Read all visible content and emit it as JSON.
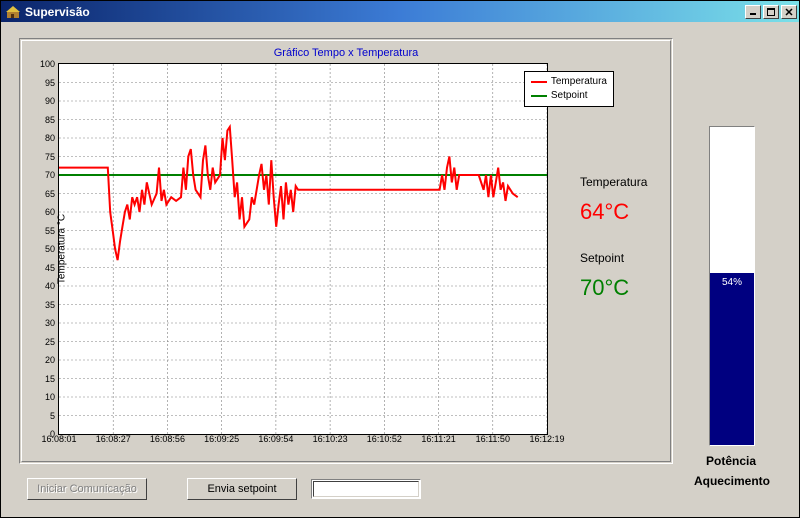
{
  "window": {
    "title": "Supervisão"
  },
  "panel": {
    "chart": {
      "title": "Gráfico Tempo x Temperatura",
      "type": "line",
      "title_color": "#0000cd",
      "y_axis_label": "Temperatura °C",
      "ylim": [
        0,
        100
      ],
      "ytick_step": 5,
      "x_ticks": [
        "16:08:01",
        "16:08:27",
        "16:08:56",
        "16:09:25",
        "16:09:54",
        "16:10:23",
        "16:10:52",
        "16:11:21",
        "16:11:50",
        "16:12:19"
      ],
      "grid_color": "#808080",
      "grid_dash": "2,2",
      "background_color": "#ffffff",
      "series": [
        {
          "name": "Temperatura",
          "color": "#ff0000",
          "line_width": 2,
          "data": [
            [
              0.0,
              72
            ],
            [
              0.03,
              72
            ],
            [
              0.06,
              72
            ],
            [
              0.09,
              72
            ],
            [
              0.1,
              72
            ],
            [
              0.105,
              60
            ],
            [
              0.11,
              55
            ],
            [
              0.115,
              50
            ],
            [
              0.12,
              47
            ],
            [
              0.125,
              52
            ],
            [
              0.13,
              56
            ],
            [
              0.135,
              60
            ],
            [
              0.14,
              62
            ],
            [
              0.145,
              58
            ],
            [
              0.15,
              64
            ],
            [
              0.155,
              62
            ],
            [
              0.16,
              64
            ],
            [
              0.165,
              60
            ],
            [
              0.17,
              66
            ],
            [
              0.175,
              62
            ],
            [
              0.18,
              68
            ],
            [
              0.19,
              62
            ],
            [
              0.2,
              65
            ],
            [
              0.205,
              72
            ],
            [
              0.21,
              63
            ],
            [
              0.215,
              66
            ],
            [
              0.22,
              62
            ],
            [
              0.23,
              64
            ],
            [
              0.24,
              63
            ],
            [
              0.25,
              64
            ],
            [
              0.255,
              72
            ],
            [
              0.26,
              66
            ],
            [
              0.265,
              75
            ],
            [
              0.27,
              77
            ],
            [
              0.275,
              70
            ],
            [
              0.28,
              66
            ],
            [
              0.29,
              64
            ],
            [
              0.295,
              74
            ],
            [
              0.3,
              78
            ],
            [
              0.305,
              70
            ],
            [
              0.31,
              66
            ],
            [
              0.315,
              72
            ],
            [
              0.32,
              68
            ],
            [
              0.33,
              70
            ],
            [
              0.335,
              80
            ],
            [
              0.34,
              74
            ],
            [
              0.345,
              82
            ],
            [
              0.35,
              83
            ],
            [
              0.355,
              74
            ],
            [
              0.36,
              64
            ],
            [
              0.365,
              68
            ],
            [
              0.37,
              58
            ],
            [
              0.375,
              64
            ],
            [
              0.38,
              56
            ],
            [
              0.39,
              58
            ],
            [
              0.395,
              64
            ],
            [
              0.4,
              62
            ],
            [
              0.41,
              70
            ],
            [
              0.415,
              73
            ],
            [
              0.42,
              66
            ],
            [
              0.425,
              70
            ],
            [
              0.43,
              62
            ],
            [
              0.435,
              74
            ],
            [
              0.44,
              64
            ],
            [
              0.445,
              56
            ],
            [
              0.45,
              62
            ],
            [
              0.455,
              67
            ],
            [
              0.46,
              58
            ],
            [
              0.465,
              68
            ],
            [
              0.47,
              62
            ],
            [
              0.475,
              66
            ],
            [
              0.48,
              60
            ],
            [
              0.485,
              67
            ],
            [
              0.49,
              66
            ],
            [
              0.495,
              66
            ],
            [
              0.5,
              66
            ],
            [
              0.55,
              66
            ],
            [
              0.6,
              66
            ],
            [
              0.65,
              66
            ],
            [
              0.7,
              66
            ],
            [
              0.75,
              66
            ],
            [
              0.78,
              66
            ],
            [
              0.785,
              70
            ],
            [
              0.79,
              66
            ],
            [
              0.795,
              72
            ],
            [
              0.8,
              75
            ],
            [
              0.805,
              68
            ],
            [
              0.81,
              72
            ],
            [
              0.815,
              66
            ],
            [
              0.82,
              70
            ],
            [
              0.83,
              70
            ],
            [
              0.84,
              70
            ],
            [
              0.85,
              70
            ],
            [
              0.86,
              70
            ],
            [
              0.87,
              66
            ],
            [
              0.875,
              70
            ],
            [
              0.88,
              64
            ],
            [
              0.885,
              70
            ],
            [
              0.89,
              64
            ],
            [
              0.895,
              68
            ],
            [
              0.9,
              72
            ],
            [
              0.905,
              66
            ],
            [
              0.91,
              68
            ],
            [
              0.915,
              63
            ],
            [
              0.92,
              67
            ],
            [
              0.93,
              65
            ],
            [
              0.94,
              64
            ]
          ]
        },
        {
          "name": "Setpoint",
          "color": "#008000",
          "line_width": 2,
          "data": [
            [
              0.0,
              70
            ],
            [
              1.0,
              70
            ]
          ]
        }
      ],
      "legend": {
        "items": [
          {
            "label": "Temperatura",
            "color": "#ff0000"
          },
          {
            "label": "Setpoint",
            "color": "#008000"
          }
        ]
      }
    },
    "readings": {
      "temperatura": {
        "label": "Temperatura",
        "value": "64°C",
        "color": "#ff0000"
      },
      "setpoint": {
        "label": "Setpoint",
        "value": "70°C",
        "color": "#008000"
      }
    }
  },
  "buttons": {
    "iniciar": "Iniciar Comunicação",
    "envia": "Envia setpoint"
  },
  "setpoint_input": {
    "value": ""
  },
  "gauge": {
    "percent": 54,
    "text": "54%",
    "fill_color": "#000080",
    "bg_color": "#ffffff",
    "label1": "Potência",
    "label2": "Aquecimento"
  }
}
